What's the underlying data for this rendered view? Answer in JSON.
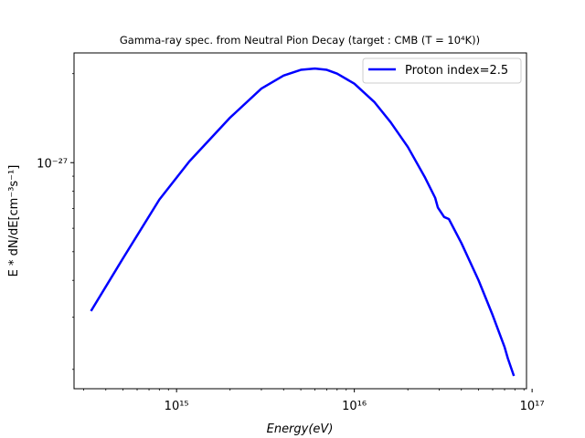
{
  "chart_data": {
    "type": "line",
    "title": "Gamma-ray spec. from Neutral Pion Decay (target : CMB (T = 10⁴K))",
    "xlabel": "Energy(eV)",
    "ylabel": "E * dN/dE[cm⁻³s⁻¹]",
    "xscale": "log",
    "yscale": "log",
    "xlim": [
      265000000000000.0,
      9.3e+16
    ],
    "ylim": [
      1.72e-28,
      2.35e-27
    ],
    "grid": false,
    "legend_position": "top-right",
    "x_major_ticks": [
      {
        "value": 1000000000000000.0,
        "label": "10¹⁵"
      },
      {
        "value": 1e+16,
        "label": "10¹⁶"
      },
      {
        "value": 1e+17,
        "label": "10¹⁷"
      }
    ],
    "y_major_ticks": [
      {
        "value": 1e-27,
        "label": "10⁻²⁷"
      }
    ],
    "series": [
      {
        "name": "Proton index=2.5",
        "color": "#0000ff",
        "x": [
          330000000000000.0,
          500000000000000.0,
          800000000000000.0,
          1180000000000000.0,
          2000000000000000.0,
          3000000000000000.0,
          4000000000000000.0,
          5000000000000000.0,
          6000000000000000.0,
          7000000000000000.0,
          8000000000000000.0,
          1e+16,
          1.3e+16,
          1.6e+16,
          2e+16,
          2.5e+16,
          2.85e+16,
          2.95e+16,
          3.2e+16,
          3.4e+16,
          4e+16,
          5e+16,
          6e+16,
          7e+16,
          7.3e+16,
          7.9e+16
        ],
        "y": [
          3.15e-28,
          4.75e-28,
          7.5e-28,
          1.01e-27,
          1.42e-27,
          1.78e-27,
          1.97e-27,
          2.06e-27,
          2.08e-27,
          2.06e-27,
          2e-27,
          1.85e-27,
          1.6e-27,
          1.37e-27,
          1.13e-27,
          8.9e-28,
          7.6e-28,
          7.05e-28,
          6.55e-28,
          6.45e-28,
          5.35e-28,
          4e-28,
          3.05e-28,
          2.38e-28,
          2.18e-28,
          1.9e-28
        ]
      }
    ]
  }
}
